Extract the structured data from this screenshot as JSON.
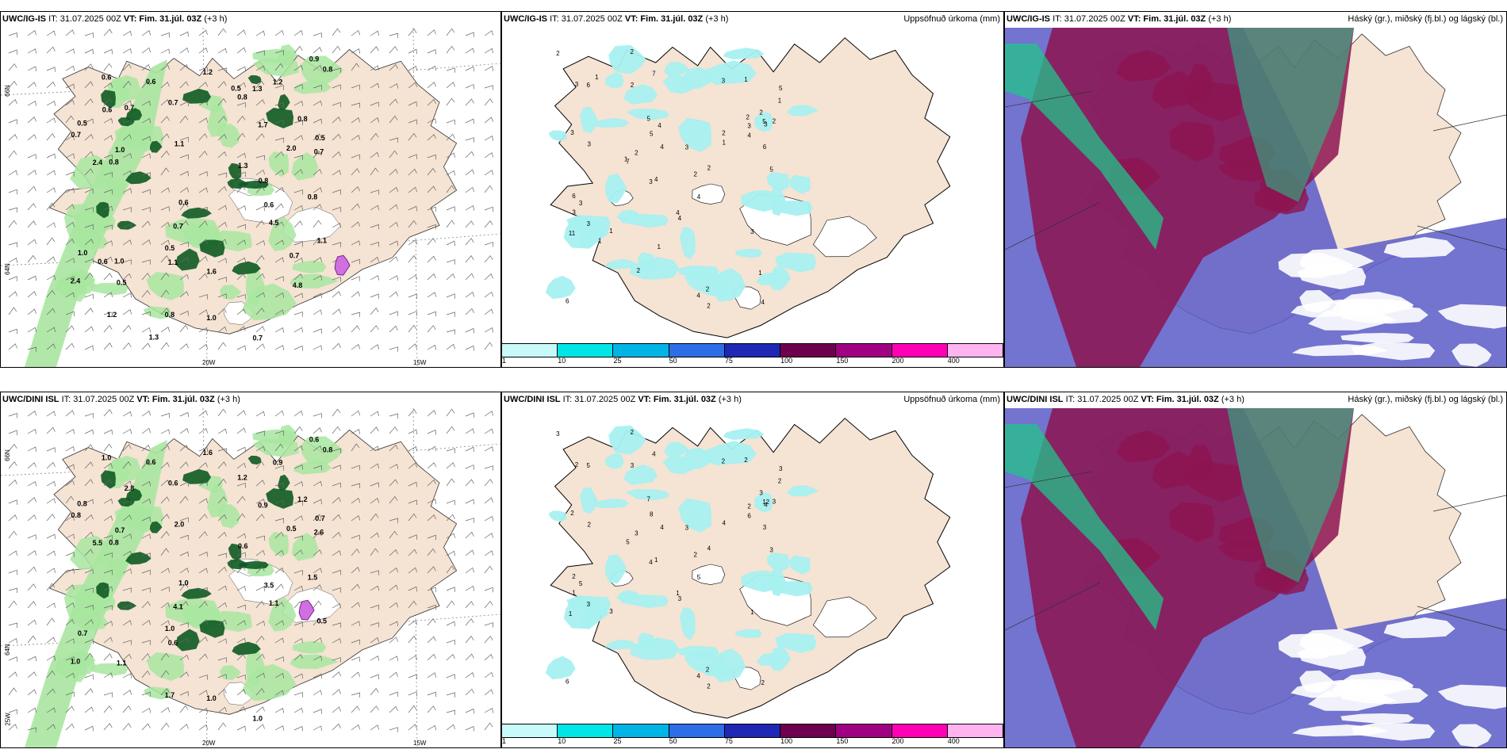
{
  "panels": {
    "top_wind": {
      "model": "UWC/IG-IS",
      "it": "IT: 31.07.2025 00Z",
      "vt": "VT: Fim. 31.júl. 03Z",
      "lead": "(+3 h)"
    },
    "top_precip": {
      "model": "UWC/IG-IS",
      "it": "IT: 31.07.2025 00Z",
      "vt": "VT: Fim. 31.júl. 03Z",
      "lead": "(+3 h)",
      "right_title": "Uppsöfnuð úrkoma (mm)"
    },
    "top_cloud": {
      "model": "UWC/IG-IS",
      "it": "IT: 31.07.2025 00Z",
      "vt": "VT: Fim. 31.júl. 03Z",
      "lead": "(+3 h)",
      "right_title": "Háský (gr.), miðský (fj.bl.) og lágský (bl.)"
    },
    "bot_wind": {
      "model": "UWC/DINI ISL",
      "it": "IT: 31.07.2025 00Z",
      "vt": "VT: Fim. 31.júl. 03Z",
      "lead": "(+3 h)"
    },
    "bot_precip": {
      "model": "UWC/DINI ISL",
      "it": "IT: 31.07.2025 00Z",
      "vt": "VT: Fim. 31.júl. 03Z",
      "lead": "(+3 h)",
      "right_title": "Uppsöfnuð úrkoma (mm)"
    },
    "bot_cloud": {
      "model": "UWC/DINI ISL",
      "it": "IT: 31.07.2025 00Z",
      "vt": "VT: Fim. 31.júl. 03Z",
      "lead": "(+3 h)",
      "right_title": "Háský (gr.), miðský (fj.bl.) og lágský (bl.)"
    }
  },
  "grid_labels": {
    "lat66": "66N",
    "lat64": "64N",
    "lon25": "25W",
    "lon20": "20W",
    "lon15": "15W"
  },
  "colorbar": {
    "colors": [
      "#c8fafa",
      "#00e6e6",
      "#00b4e6",
      "#2d6ee6",
      "#1e28b4",
      "#6e0050",
      "#a00082",
      "#ff00b4",
      "#ffb4f0"
    ],
    "labels": [
      "1",
      "10",
      "25",
      "50",
      "75",
      "100",
      "150",
      "200",
      "400"
    ]
  },
  "colors": {
    "land": "#f5e3d3",
    "precip_light": "#a8f0f0",
    "wind_green_light": "#a8e6a0",
    "wind_green_dark": "#0e5a22",
    "cloud_high": "#22c48a",
    "cloud_mid": "#8c1450",
    "cloud_low": "#5a5ac8"
  },
  "top_precip_values": [
    "2",
    "6",
    "3",
    "3",
    "2",
    "2",
    "1",
    "3",
    "5",
    "6",
    "7",
    "5",
    "4",
    "6",
    "3",
    "2",
    "4",
    "2",
    "3",
    "5",
    "4",
    "3",
    "5",
    "2",
    "4",
    "6",
    "5",
    "7",
    "4",
    "3",
    "3",
    "4",
    "11",
    "3",
    "3",
    "2",
    "1",
    "4",
    "3",
    "2",
    "2",
    "3",
    "1",
    "4",
    "2",
    "1",
    "1",
    "1",
    "1",
    "1",
    "2",
    "4",
    "1",
    "2",
    "2"
  ],
  "bot_precip_values": [
    "2",
    "3",
    "2",
    "4",
    "2",
    "3",
    "3",
    "3",
    "12",
    "5",
    "4",
    "3",
    "3",
    "2",
    "2",
    "4",
    "5",
    "2",
    "4",
    "8",
    "6",
    "5",
    "3",
    "3",
    "4",
    "6",
    "7",
    "5",
    "2",
    "1",
    "1",
    "1",
    "1",
    "3",
    "2",
    "3",
    "2",
    "4",
    "2",
    "3",
    "3",
    "2",
    "2",
    "1",
    "2",
    "4"
  ],
  "top_wind_values": [
    "0.7",
    "0.8",
    "1.1",
    "1.7",
    "2.0",
    "0.6",
    "0.5",
    "1.2",
    "0.8",
    "1.0",
    "0.6",
    "0.7",
    "0.5",
    "0.8",
    "1.0",
    "1.1",
    "2.4",
    "2.4",
    "1.1",
    "0.5",
    "4.5",
    "0.8",
    "0.7",
    "1.2",
    "0.8",
    "0.6",
    "0.5",
    "0.7",
    "0.9",
    "0.6",
    "0.8",
    "1.0",
    "0.7",
    "1.3",
    "0.7",
    "0.8",
    "1.6",
    "1.0",
    "1.3",
    "0.7",
    "0.6",
    "0.6",
    "1.2",
    "4.8",
    "0.5",
    "1.3"
  ],
  "bot_wind_values": [
    "0.8",
    "0.8",
    "0.5",
    "0.9",
    "0.5",
    "1.0",
    "0.8",
    "1.6",
    "1.5",
    "0.7",
    "1.0",
    "2.6",
    "1.1",
    "1.2",
    "0.7",
    "0.6",
    "1.0",
    "5.5",
    "2.0",
    "1.0",
    "1.1",
    "0.8",
    "0.6",
    "0.9",
    "1.7",
    "3.5",
    "0.7",
    "1.0",
    "0.6",
    "0.6",
    "1.2",
    "1.0",
    "2.8",
    "0.6",
    "4.1"
  ]
}
